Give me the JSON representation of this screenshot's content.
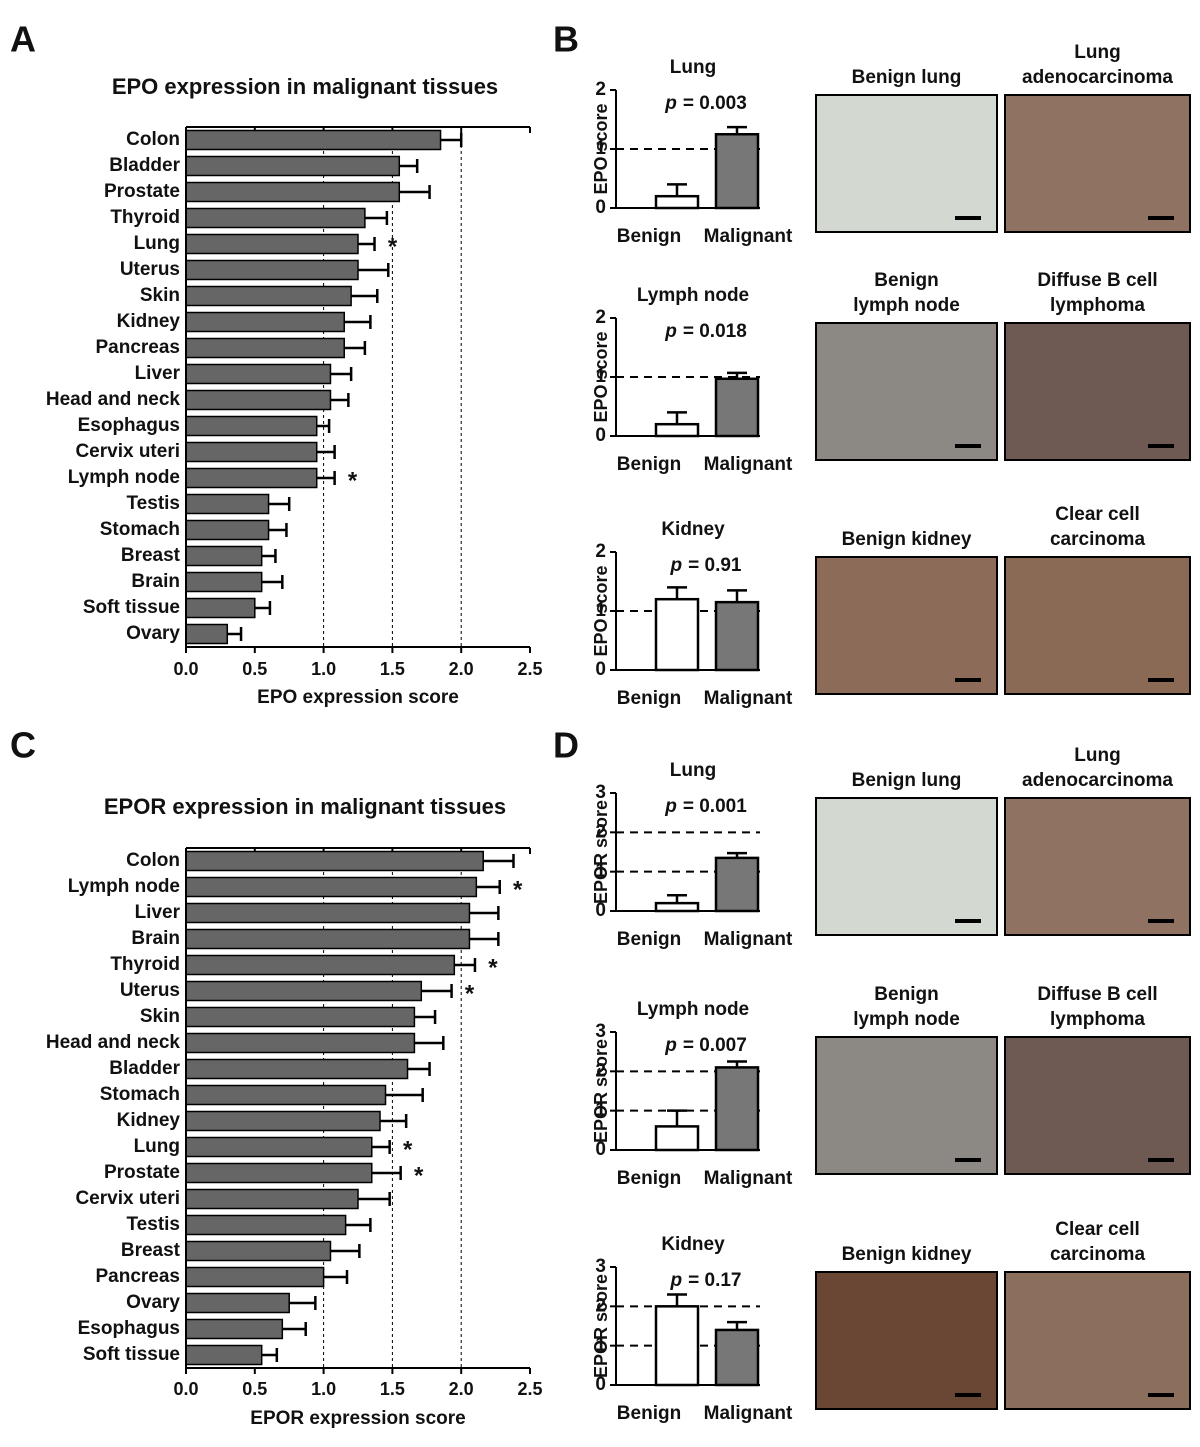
{
  "panel_labels": [
    "A",
    "B",
    "C",
    "D"
  ],
  "chart_data": [
    {
      "type": "hbar",
      "title": "EPO expression in malignant tissues",
      "xlabel": "EPO expression score",
      "categories": [
        "Colon",
        "Bladder",
        "Prostate",
        "Thyroid",
        "Lung",
        "Uterus",
        "Skin",
        "Kidney",
        "Pancreas",
        "Liver",
        "Head and neck",
        "Esophagus",
        "Cervix uteri",
        "Lymph node",
        "Testis",
        "Stomach",
        "Breast",
        "Brain",
        "Soft tissue",
        "Ovary"
      ],
      "values": [
        1.85,
        1.55,
        1.55,
        1.3,
        1.25,
        1.25,
        1.2,
        1.15,
        1.15,
        1.05,
        1.05,
        0.95,
        0.95,
        0.95,
        0.6,
        0.6,
        0.55,
        0.55,
        0.5,
        0.3
      ],
      "errors": [
        0.15,
        0.13,
        0.22,
        0.16,
        0.12,
        0.22,
        0.19,
        0.19,
        0.15,
        0.15,
        0.13,
        0.09,
        0.13,
        0.13,
        0.15,
        0.13,
        0.1,
        0.15,
        0.11,
        0.1
      ],
      "markers": [
        null,
        null,
        null,
        null,
        "*",
        null,
        null,
        null,
        null,
        null,
        null,
        null,
        null,
        "*",
        null,
        null,
        null,
        null,
        null,
        null
      ],
      "color": "#666666",
      "xlim": [
        0,
        2.5
      ],
      "xticks": [
        {
          "value": 0,
          "label": "0.0"
        },
        0.5,
        {
          "value": 1,
          "label": "1.0"
        },
        1.5,
        {
          "value": 2,
          "label": "2.0"
        },
        2.5
      ],
      "reference_lines": [
        1,
        1.5,
        2
      ]
    },
    {
      "type": "bar",
      "title": "Lung",
      "ylabel": "EPO score",
      "categories": [
        "Benign",
        "Malignant"
      ],
      "values": [
        0.2,
        1.25
      ],
      "errors": [
        0.2,
        0.12
      ],
      "colors": [
        "#ffffff",
        "#777777"
      ],
      "ylim": [
        0,
        2
      ],
      "yticks": [
        0,
        1,
        2
      ],
      "reference_lines": [
        1
      ],
      "p_symbol": "p",
      "p_text": "= 0.003",
      "images": [
        {
          "caption": [
            "Benign lung"
          ]
        },
        {
          "caption": [
            "Lung",
            "adenocarcinoma"
          ]
        }
      ]
    },
    {
      "type": "bar",
      "title": "Lymph node",
      "ylabel": "EPO score",
      "categories": [
        "Benign",
        "Malignant"
      ],
      "values": [
        0.2,
        0.97
      ],
      "errors": [
        0.2,
        0.1
      ],
      "colors": [
        "#ffffff",
        "#777777"
      ],
      "ylim": [
        0,
        2
      ],
      "yticks": [
        0,
        1,
        2
      ],
      "reference_lines": [
        1
      ],
      "p_symbol": "p",
      "p_text": "= 0.018",
      "images": [
        {
          "caption": [
            "Benign",
            "lymph node"
          ]
        },
        {
          "caption": [
            "Diffuse B cell",
            "lymphoma"
          ]
        }
      ]
    },
    {
      "type": "bar",
      "title": "Kidney",
      "ylabel": "EPO score",
      "categories": [
        "Benign",
        "Malignant"
      ],
      "values": [
        1.2,
        1.15
      ],
      "errors": [
        0.2,
        0.2
      ],
      "colors": [
        "#ffffff",
        "#777777"
      ],
      "ylim": [
        0,
        2
      ],
      "yticks": [
        0,
        1,
        2
      ],
      "reference_lines": [
        1
      ],
      "p_symbol": "p",
      "p_text": "= 0.91",
      "images": [
        {
          "caption": [
            "Benign kidney"
          ]
        },
        {
          "caption": [
            "Clear cell",
            "carcinoma"
          ]
        }
      ]
    },
    {
      "type": "hbar",
      "title": "EPOR expression in malignant tissues",
      "xlabel": "EPOR expression score",
      "categories": [
        "Colon",
        "Lymph node",
        "Liver",
        "Brain",
        "Thyroid",
        "Uterus",
        "Skin",
        "Head and neck",
        "Bladder",
        "Stomach",
        "Kidney",
        "Lung",
        "Prostate",
        "Cervix uteri",
        "Testis",
        "Breast",
        "Pancreas",
        "Ovary",
        "Esophagus",
        "Soft tissue"
      ],
      "values": [
        2.16,
        2.11,
        2.06,
        2.06,
        1.95,
        1.71,
        1.66,
        1.66,
        1.61,
        1.45,
        1.41,
        1.35,
        1.35,
        1.25,
        1.16,
        1.05,
        1.0,
        0.75,
        0.7,
        0.55
      ],
      "errors": [
        0.22,
        0.17,
        0.21,
        0.21,
        0.15,
        0.22,
        0.15,
        0.21,
        0.16,
        0.27,
        0.19,
        0.13,
        0.21,
        0.23,
        0.18,
        0.21,
        0.17,
        0.19,
        0.17,
        0.11
      ],
      "markers": [
        null,
        "*",
        null,
        null,
        "*",
        "*",
        null,
        null,
        null,
        null,
        null,
        "*",
        "*",
        null,
        null,
        null,
        null,
        null,
        null,
        null
      ],
      "color": "#666666",
      "xlim": [
        0,
        2.5
      ],
      "xticks": [
        {
          "value": 0,
          "label": "0.0"
        },
        0.5,
        {
          "value": 1,
          "label": "1.0"
        },
        1.5,
        {
          "value": 2,
          "label": "2.0"
        },
        2.5
      ],
      "reference_lines": [
        1,
        1.5,
        2
      ]
    },
    {
      "type": "bar",
      "title": "Lung",
      "ylabel": "EPOR score",
      "categories": [
        "Benign",
        "Malignant"
      ],
      "values": [
        0.2,
        1.35
      ],
      "errors": [
        0.2,
        0.12
      ],
      "colors": [
        "#ffffff",
        "#777777"
      ],
      "ylim": [
        0,
        3
      ],
      "yticks": [
        0,
        1,
        2,
        3
      ],
      "reference_lines": [
        1,
        2
      ],
      "p_symbol": "p",
      "p_text": "= 0.001",
      "images": [
        {
          "caption": [
            "Benign lung"
          ]
        },
        {
          "caption": [
            "Lung",
            "adenocarcinoma"
          ]
        }
      ]
    },
    {
      "type": "bar",
      "title": "Lymph node",
      "ylabel": "EPOR score",
      "categories": [
        "Benign",
        "Malignant"
      ],
      "values": [
        0.6,
        2.1
      ],
      "errors": [
        0.4,
        0.15
      ],
      "colors": [
        "#ffffff",
        "#777777"
      ],
      "ylim": [
        0,
        3
      ],
      "yticks": [
        0,
        1,
        2,
        3
      ],
      "reference_lines": [
        1,
        2
      ],
      "p_symbol": "p",
      "p_text": "= 0.007",
      "images": [
        {
          "caption": [
            "Benign",
            "lymph node"
          ]
        },
        {
          "caption": [
            "Diffuse B cell",
            "lymphoma"
          ]
        }
      ]
    },
    {
      "type": "bar",
      "title": "Kidney",
      "ylabel": "EPOR score",
      "categories": [
        "Benign",
        "Malignant"
      ],
      "values": [
        2.0,
        1.4
      ],
      "errors": [
        0.3,
        0.2
      ],
      "colors": [
        "#ffffff",
        "#777777"
      ],
      "ylim": [
        0,
        3
      ],
      "yticks": [
        0,
        1,
        2,
        3
      ],
      "reference_lines": [
        1,
        2
      ],
      "p_symbol": "p",
      "p_text": "= 0.17",
      "images": [
        {
          "caption": [
            "Benign kidney"
          ]
        },
        {
          "caption": [
            "Clear cell",
            "carcinoma"
          ]
        }
      ]
    }
  ]
}
